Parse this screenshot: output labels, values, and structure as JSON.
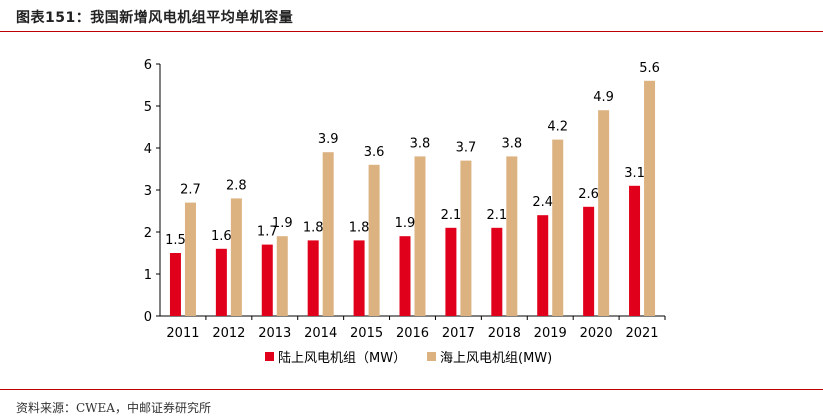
{
  "figure": {
    "title": "图表151：我国新增风电机组平均单机容量",
    "source": "资料来源：CWEA，中邮证券研究所"
  },
  "colors": {
    "onshore": "#e0001b",
    "offshore": "#dcb281",
    "rule": "#c00000"
  },
  "chart_data": {
    "type": "bar",
    "title": "我国新增风电机组平均单机容量",
    "categories": [
      "2011",
      "2012",
      "2013",
      "2014",
      "2015",
      "2016",
      "2017",
      "2018",
      "2019",
      "2020",
      "2021"
    ],
    "series": [
      {
        "name": "陆上风电机组（MW）",
        "values": [
          1.5,
          1.6,
          1.7,
          1.8,
          1.8,
          1.9,
          2.1,
          2.1,
          2.4,
          2.6,
          3.1
        ]
      },
      {
        "name": "海上风电机组(MW)",
        "values": [
          2.7,
          2.8,
          1.9,
          3.9,
          3.6,
          3.8,
          3.7,
          3.8,
          4.2,
          4.9,
          5.6
        ]
      }
    ],
    "yticks": [
      0,
      1,
      2,
      3,
      4,
      5,
      6
    ],
    "ylim": [
      0,
      6
    ],
    "xlabel": "",
    "ylabel": "",
    "legend": "bottom-center",
    "grid": false
  }
}
